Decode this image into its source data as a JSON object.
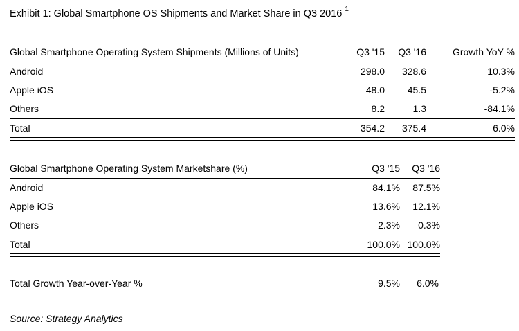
{
  "exhibit": {
    "title": "Exhibit 1: Global Smartphone OS Shipments and Market Share in Q3 2016",
    "footnote_marker": "1"
  },
  "shipments": {
    "headers": [
      "Global Smartphone Operating System Shipments (Millions of Units)",
      "Q3 '15",
      "Q3 '16",
      "Growth YoY %"
    ],
    "rows": [
      [
        "Android",
        "298.0",
        "328.6",
        "10.3%"
      ],
      [
        "Apple iOS",
        "48.0",
        "45.5",
        "-5.2%"
      ],
      [
        "Others",
        "8.2",
        "1.3",
        "-84.1%"
      ]
    ],
    "total": [
      "Total",
      "354.2",
      "375.4",
      "6.0%"
    ]
  },
  "marketshare": {
    "headers": [
      "Global Smartphone Operating System Marketshare (%)",
      "Q3 '15",
      "Q3 '16"
    ],
    "rows": [
      [
        "Android",
        "84.1%",
        "87.5%"
      ],
      [
        "Apple iOS",
        "13.6%",
        "12.1%"
      ],
      [
        "Others",
        "2.3%",
        "0.3%"
      ]
    ],
    "total": [
      "Total",
      "100.0%",
      "100.0%"
    ]
  },
  "growth": {
    "label": "Total Growth Year-over-Year %",
    "q3_15": "9.5%",
    "q3_16": "6.0%"
  },
  "source": "Source: Strategy Analytics"
}
